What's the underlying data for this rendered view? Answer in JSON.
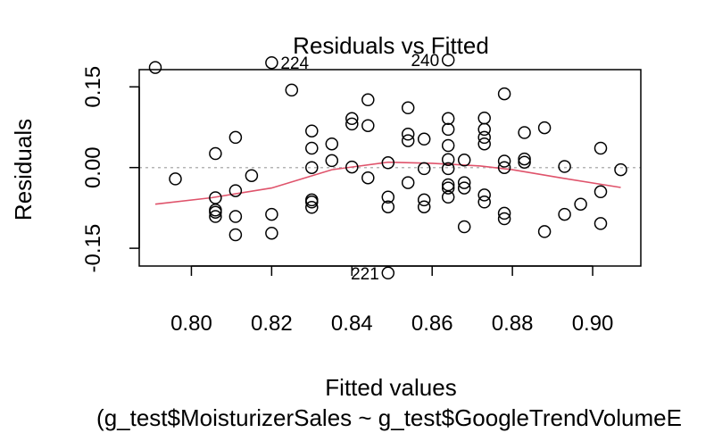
{
  "chart_data": {
    "type": "scatter",
    "title": "Residuals vs Fitted",
    "xlabel": "Fitted values",
    "ylabel": "Residuals",
    "subtitle": "(g_test$MoisturizerSales ~ g_test$GoogleTrendVolumeE",
    "xlim": [
      0.787,
      0.912
    ],
    "ylim": [
      -0.183,
      0.182
    ],
    "x_ticks": [
      {
        "value": 0.8,
        "label": "0.80"
      },
      {
        "value": 0.82,
        "label": "0.82"
      },
      {
        "value": 0.84,
        "label": "0.84"
      },
      {
        "value": 0.86,
        "label": "0.86"
      },
      {
        "value": 0.88,
        "label": "0.88"
      },
      {
        "value": 0.9,
        "label": "0.90"
      }
    ],
    "y_ticks": [
      {
        "value": -0.15,
        "label": "-0.15"
      },
      {
        "value": 0.0,
        "label": "0.00"
      },
      {
        "value": 0.15,
        "label": "0.15"
      }
    ],
    "reference_line": {
      "y": 0,
      "style": "dotted",
      "color": "#b5b5b5"
    },
    "points": [
      {
        "x": 0.791,
        "y": 0.186
      },
      {
        "x": 0.796,
        "y": -0.021
      },
      {
        "x": 0.806,
        "y": 0.026
      },
      {
        "x": 0.806,
        "y": -0.056
      },
      {
        "x": 0.806,
        "y": -0.079
      },
      {
        "x": 0.806,
        "y": -0.083
      },
      {
        "x": 0.806,
        "y": -0.091
      },
      {
        "x": 0.811,
        "y": 0.056
      },
      {
        "x": 0.811,
        "y": -0.043
      },
      {
        "x": 0.811,
        "y": -0.091
      },
      {
        "x": 0.811,
        "y": -0.125
      },
      {
        "x": 0.815,
        "y": -0.015
      },
      {
        "x": 0.82,
        "y": 0.195,
        "label": "224"
      },
      {
        "x": 0.82,
        "y": -0.087
      },
      {
        "x": 0.82,
        "y": -0.122
      },
      {
        "x": 0.825,
        "y": 0.144
      },
      {
        "x": 0.83,
        "y": 0.068
      },
      {
        "x": 0.83,
        "y": 0.036
      },
      {
        "x": 0.83,
        "y": 0.0
      },
      {
        "x": 0.83,
        "y": -0.06
      },
      {
        "x": 0.83,
        "y": -0.064
      },
      {
        "x": 0.83,
        "y": -0.074
      },
      {
        "x": 0.835,
        "y": 0.044
      },
      {
        "x": 0.835,
        "y": 0.013
      },
      {
        "x": 0.84,
        "y": 0.091
      },
      {
        "x": 0.84,
        "y": 0.081
      },
      {
        "x": 0.84,
        "y": 0.001
      },
      {
        "x": 0.844,
        "y": 0.126
      },
      {
        "x": 0.844,
        "y": 0.078
      },
      {
        "x": 0.844,
        "y": -0.019
      },
      {
        "x": 0.849,
        "y": 0.009
      },
      {
        "x": 0.849,
        "y": -0.055
      },
      {
        "x": 0.849,
        "y": -0.073
      },
      {
        "x": 0.849,
        "y": -0.196,
        "label": "221"
      },
      {
        "x": 0.854,
        "y": 0.111
      },
      {
        "x": 0.854,
        "y": 0.062
      },
      {
        "x": 0.854,
        "y": 0.05
      },
      {
        "x": 0.854,
        "y": -0.028
      },
      {
        "x": 0.858,
        "y": 0.053
      },
      {
        "x": 0.858,
        "y": -0.002
      },
      {
        "x": 0.858,
        "y": -0.06
      },
      {
        "x": 0.858,
        "y": -0.073
      },
      {
        "x": 0.864,
        "y": 0.2,
        "label": "240"
      },
      {
        "x": 0.864,
        "y": 0.091
      },
      {
        "x": 0.864,
        "y": 0.071
      },
      {
        "x": 0.864,
        "y": 0.041
      },
      {
        "x": 0.864,
        "y": 0.015
      },
      {
        "x": 0.864,
        "y": -0.002
      },
      {
        "x": 0.864,
        "y": -0.032
      },
      {
        "x": 0.864,
        "y": -0.038
      },
      {
        "x": 0.864,
        "y": -0.055
      },
      {
        "x": 0.868,
        "y": 0.014
      },
      {
        "x": 0.868,
        "y": -0.028
      },
      {
        "x": 0.868,
        "y": -0.038
      },
      {
        "x": 0.868,
        "y": -0.11
      },
      {
        "x": 0.873,
        "y": 0.092
      },
      {
        "x": 0.873,
        "y": 0.071
      },
      {
        "x": 0.873,
        "y": 0.056
      },
      {
        "x": 0.873,
        "y": 0.044
      },
      {
        "x": 0.873,
        "y": -0.051
      },
      {
        "x": 0.873,
        "y": -0.064
      },
      {
        "x": 0.878,
        "y": 0.137
      },
      {
        "x": 0.878,
        "y": 0.012
      },
      {
        "x": 0.878,
        "y": 0.0
      },
      {
        "x": 0.878,
        "y": -0.085
      },
      {
        "x": 0.878,
        "y": -0.095
      },
      {
        "x": 0.883,
        "y": 0.065
      },
      {
        "x": 0.883,
        "y": 0.016
      },
      {
        "x": 0.883,
        "y": 0.01
      },
      {
        "x": 0.888,
        "y": 0.074
      },
      {
        "x": 0.888,
        "y": -0.119
      },
      {
        "x": 0.893,
        "y": 0.002
      },
      {
        "x": 0.893,
        "y": -0.087
      },
      {
        "x": 0.897,
        "y": -0.068
      },
      {
        "x": 0.902,
        "y": 0.036
      },
      {
        "x": 0.902,
        "y": -0.045
      },
      {
        "x": 0.902,
        "y": -0.104
      },
      {
        "x": 0.907,
        "y": -0.004
      }
    ],
    "smooth_line": {
      "color": "#df536b",
      "x": [
        0.791,
        0.805,
        0.82,
        0.835,
        0.849,
        0.86,
        0.872,
        0.88,
        0.892,
        0.907
      ],
      "y": [
        -0.068,
        -0.056,
        -0.038,
        -0.004,
        0.01,
        0.008,
        0.003,
        -0.004,
        -0.019,
        -0.037
      ]
    }
  }
}
